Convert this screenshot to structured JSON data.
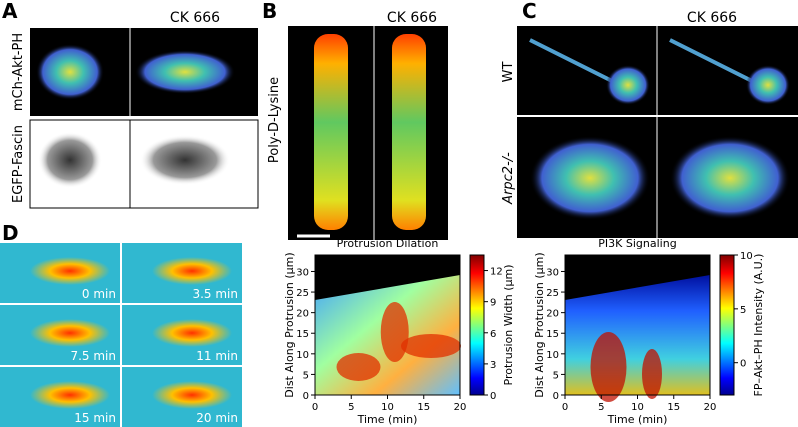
{
  "figure": {
    "A": {
      "label": "A",
      "column_header": "CK 666",
      "row_labels": [
        "mCh-Akt-PH",
        "EGFP-Fascin"
      ]
    },
    "B": {
      "label": "B",
      "column_header": "CK 666",
      "row_label": "Poly-D-Lysine"
    },
    "C": {
      "label": "C",
      "column_header": "CK 666",
      "row_labels": [
        "WT",
        "Arpc2-/-"
      ]
    },
    "D": {
      "label": "D",
      "times": [
        "0 min",
        "3.5 min",
        "7.5 min",
        "11 min",
        "15 min",
        "20 min"
      ]
    }
  },
  "chart_data": [
    {
      "type": "heatmap",
      "title": "Protrusion Dilation",
      "x_label": "Time (min)",
      "y_label": "Dist Along Protrusion (μm)",
      "xlim": [
        0,
        20
      ],
      "xticks": [
        0,
        5,
        10,
        15,
        20
      ],
      "ylim": [
        0,
        34
      ],
      "yticks": [
        0,
        5,
        10,
        15,
        20,
        25,
        30
      ],
      "colorbar": {
        "label": "Protrusion Width (μm)",
        "lim": [
          0,
          13.5
        ],
        "ticks": [
          0,
          3,
          6,
          9,
          12
        ]
      }
    },
    {
      "type": "heatmap",
      "title": "PI3K Signaling",
      "x_label": "Time (min)",
      "y_label": "Dist Along Protrusion (μm)",
      "xlim": [
        0,
        20
      ],
      "xticks": [
        0,
        5,
        10,
        15,
        20
      ],
      "ylim": [
        0,
        34
      ],
      "yticks": [
        0,
        5,
        10,
        15,
        20,
        25,
        30
      ],
      "colorbar": {
        "label": "FP–Akt–PH Intensity (A.U.)",
        "lim": [
          -3,
          10
        ],
        "ticks": [
          0,
          5,
          10
        ]
      }
    }
  ]
}
